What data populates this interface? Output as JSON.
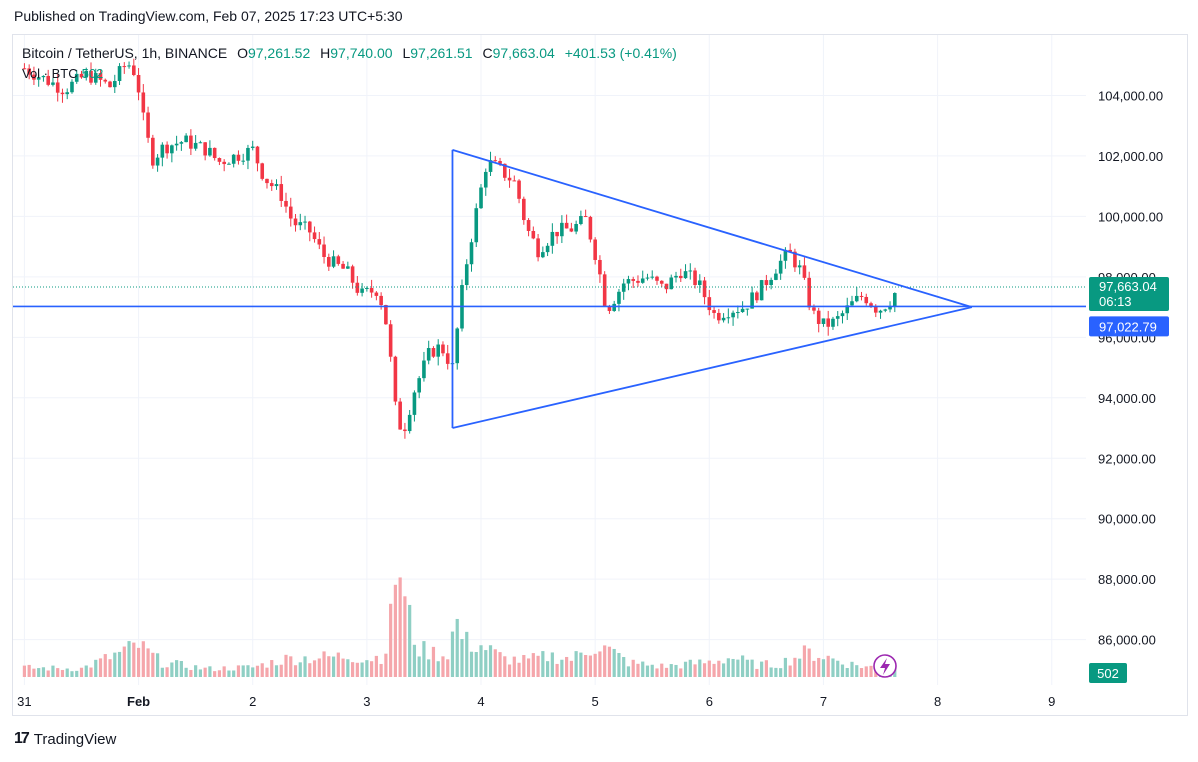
{
  "header": {
    "published": "Published on TradingView.com, Feb 07, 2025 17:23 UTC+5:30"
  },
  "legend": {
    "symbol": "Bitcoin / TetherUS, 1h, BINANCE",
    "open_label": "O",
    "open": "97,261.52",
    "high_label": "H",
    "high": "97,740.00",
    "low_label": "L",
    "low": "97,261.51",
    "close_label": "C",
    "close": "97,663.04",
    "change": "+401.53 (+0.41%)",
    "volume_label": "Vol · BTC",
    "volume": "502"
  },
  "footer": {
    "brand": "TradingView"
  },
  "colors": {
    "up": "#089981",
    "down": "#f23645",
    "up_volume": "#8fcfc4",
    "down_volume": "#f5a6ab",
    "drawing": "#2962ff",
    "price_badge": "#089981",
    "line_badge": "#2962ff",
    "grid": "#f0f3fa"
  },
  "chart_data": {
    "type": "candlestick",
    "title": "Bitcoin / TetherUS, 1h, BINANCE",
    "interval": "1h",
    "ylim": [
      84500,
      106000
    ],
    "y_ticks": [
      86000,
      88000,
      90000,
      92000,
      94000,
      96000,
      98000,
      100000,
      102000,
      104000
    ],
    "y_tick_labels": [
      "86,000.00",
      "88,000.00",
      "90,000.00",
      "92,000.00",
      "94,000.00",
      "96,000.00",
      "98,000.00",
      "100,000.00",
      "102,000.00",
      "104,000.00"
    ],
    "x_tick_labels": [
      "31",
      "Feb",
      "2",
      "3",
      "4",
      "5",
      "6",
      "7",
      "8",
      "9"
    ],
    "x_tick_days": [
      0,
      1,
      2,
      3,
      4,
      5,
      6,
      7,
      8,
      9
    ],
    "x_start_day": -0.1,
    "x_end_day": 9.3,
    "last_price": 97663.04,
    "last_price_label": "97,663.04",
    "countdown": "06:13",
    "horizontal_line": {
      "value": 97022.79,
      "label": "97,022.79"
    },
    "triangle": {
      "upper": [
        [
          3.75,
          102200
        ],
        [
          8.3,
          97000
        ]
      ],
      "lower": [
        [
          3.75,
          93000
        ],
        [
          8.3,
          97000
        ]
      ],
      "vertical": [
        [
          3.75,
          93000
        ],
        [
          3.75,
          102200
        ]
      ]
    },
    "price_anchors": [
      [
        0.0,
        104900
      ],
      [
        0.2,
        104500
      ],
      [
        0.35,
        104200
      ],
      [
        0.55,
        104700
      ],
      [
        0.75,
        104300
      ],
      [
        0.9,
        105100
      ],
      [
        0.98,
        104700
      ],
      [
        1.05,
        103000
      ],
      [
        1.12,
        101900
      ],
      [
        1.22,
        102300
      ],
      [
        1.4,
        102500
      ],
      [
        1.6,
        102200
      ],
      [
        1.7,
        101800
      ],
      [
        1.85,
        102000
      ],
      [
        2.0,
        102200
      ],
      [
        2.1,
        101300
      ],
      [
        2.25,
        100700
      ],
      [
        2.35,
        99800
      ],
      [
        2.5,
        99500
      ],
      [
        2.62,
        98700
      ],
      [
        2.72,
        98400
      ],
      [
        2.82,
        98200
      ],
      [
        2.95,
        97400
      ],
      [
        3.1,
        97600
      ],
      [
        3.18,
        96300
      ],
      [
        3.26,
        93300
      ],
      [
        3.32,
        92900
      ],
      [
        3.42,
        94300
      ],
      [
        3.55,
        95500
      ],
      [
        3.65,
        95700
      ],
      [
        3.75,
        95000
      ],
      [
        3.85,
        98000
      ],
      [
        3.95,
        100000
      ],
      [
        4.05,
        101800
      ],
      [
        4.15,
        101600
      ],
      [
        4.3,
        101100
      ],
      [
        4.4,
        99600
      ],
      [
        4.5,
        98900
      ],
      [
        4.65,
        99500
      ],
      [
        4.8,
        99600
      ],
      [
        4.92,
        99900
      ],
      [
        5.02,
        98500
      ],
      [
        5.1,
        96900
      ],
      [
        5.25,
        97800
      ],
      [
        5.45,
        98000
      ],
      [
        5.6,
        97600
      ],
      [
        5.75,
        98200
      ],
      [
        5.9,
        97800
      ],
      [
        6.05,
        96700
      ],
      [
        6.15,
        96900
      ],
      [
        6.3,
        97000
      ],
      [
        6.45,
        97600
      ],
      [
        6.6,
        98400
      ],
      [
        6.7,
        98800
      ],
      [
        6.8,
        98200
      ],
      [
        6.9,
        96800
      ],
      [
        7.0,
        96400
      ],
      [
        7.1,
        96500
      ],
      [
        7.25,
        97100
      ],
      [
        7.35,
        97400
      ],
      [
        7.48,
        96900
      ],
      [
        7.58,
        97200
      ],
      [
        7.66,
        97663
      ]
    ],
    "volume_anchors": [
      [
        0.0,
        260
      ],
      [
        0.5,
        240
      ],
      [
        0.85,
        700
      ],
      [
        1.0,
        900
      ],
      [
        1.2,
        420
      ],
      [
        1.6,
        230
      ],
      [
        2.0,
        280
      ],
      [
        2.3,
        520
      ],
      [
        2.6,
        560
      ],
      [
        2.85,
        600
      ],
      [
        3.0,
        520
      ],
      [
        3.15,
        600
      ],
      [
        3.2,
        1300
      ],
      [
        3.27,
        3600
      ],
      [
        3.33,
        2100
      ],
      [
        3.45,
        800
      ],
      [
        3.7,
        600
      ],
      [
        3.78,
        1600
      ],
      [
        3.85,
        1000
      ],
      [
        4.0,
        900
      ],
      [
        4.2,
        520
      ],
      [
        4.4,
        470
      ],
      [
        4.6,
        600
      ],
      [
        4.8,
        520
      ],
      [
        5.0,
        900
      ],
      [
        5.1,
        800
      ],
      [
        5.3,
        400
      ],
      [
        5.6,
        300
      ],
      [
        5.85,
        380
      ],
      [
        6.0,
        430
      ],
      [
        6.2,
        560
      ],
      [
        6.4,
        350
      ],
      [
        6.6,
        360
      ],
      [
        6.75,
        560
      ],
      [
        6.85,
        700
      ],
      [
        7.0,
        600
      ],
      [
        7.2,
        390
      ],
      [
        7.4,
        280
      ],
      [
        7.6,
        300
      ],
      [
        7.66,
        502
      ]
    ],
    "volume_max": 3800
  }
}
